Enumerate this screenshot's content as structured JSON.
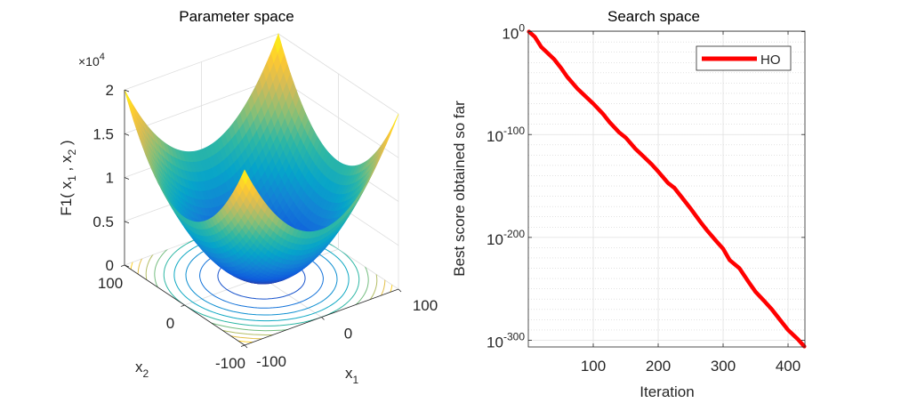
{
  "chart_data": [
    {
      "type": "surface",
      "title": "Parameter space",
      "function": "x1^2 + x2^2",
      "xlabel": "x",
      "xlabel_sub": "1",
      "ylabel": "x",
      "ylabel_sub": "2",
      "zlabel_parts": [
        "F1( x",
        "1",
        " , x",
        "2",
        " )"
      ],
      "z_multiplier": "×10",
      "z_multiplier_exp": "4",
      "xlim": [
        -100,
        100
      ],
      "ylim": [
        -100,
        100
      ],
      "zlim": [
        0,
        20000
      ],
      "xticks": [
        -100,
        0,
        100
      ],
      "yticks": [
        -100,
        0,
        100
      ],
      "zticks": [
        0,
        5000,
        10000,
        15000,
        20000
      ],
      "zticklabels": [
        "0",
        "0.5",
        "1",
        "1.5",
        "2"
      ],
      "contour_levels": [
        2000,
        4000,
        6000,
        8000,
        10000,
        12000,
        14000,
        16000,
        18000
      ],
      "colormap": [
        "#352A87",
        "#0F5CDD",
        "#1481D6",
        "#06A4CA",
        "#2EB7A4",
        "#87BF77",
        "#D1BB59",
        "#FEC832",
        "#F9FB0E"
      ],
      "grid": true
    },
    {
      "type": "line",
      "title": "Search space",
      "xlabel": "Iteration",
      "ylabel": "Best score obtained so far",
      "yscale": "log",
      "xlim": [
        0,
        426
      ],
      "ylim_log10": [
        -306.5,
        0.5
      ],
      "xticks": [
        100,
        200,
        300,
        400
      ],
      "ytick_base": "10",
      "ytick_exponents": [
        0,
        -100,
        -200,
        -300
      ],
      "grid": true,
      "legend": {
        "placement": "top-right",
        "entries": [
          "HO"
        ]
      },
      "series": [
        {
          "name": "HO",
          "color": "#FF0000",
          "x": [
            1,
            10,
            20,
            25,
            40,
            50,
            60,
            75,
            90,
            100,
            115,
            125,
            140,
            150,
            165,
            175,
            190,
            200,
            215,
            225,
            240,
            250,
            265,
            275,
            290,
            300,
            310,
            325,
            340,
            350,
            365,
            375,
            390,
            400,
            415,
            425
          ],
          "log10_y": [
            0,
            -5,
            -15,
            -18,
            -27,
            -35,
            -44,
            -55,
            -64,
            -70,
            -80,
            -88,
            -98,
            -103,
            -114,
            -120,
            -129,
            -136,
            -147,
            -152,
            -164,
            -172,
            -185,
            -193,
            -204,
            -211,
            -222,
            -230,
            -244,
            -253,
            -263,
            -270,
            -282,
            -290,
            -299,
            -306
          ]
        }
      ]
    }
  ]
}
